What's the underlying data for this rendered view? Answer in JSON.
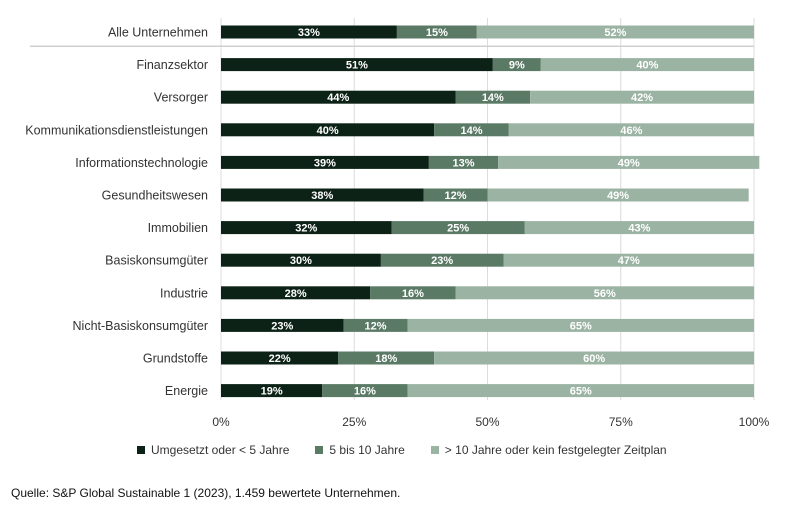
{
  "chart_data": {
    "type": "bar",
    "orientation": "horizontal",
    "stacked": true,
    "categories": [
      "Alle Unternehmen",
      "Finanzsektor",
      "Versorger",
      "Kommunikationsdienstleistungen",
      "Informationstechnologie",
      "Gesundheitswesen",
      "Immobilien",
      "Basiskonsumgüter",
      "Industrie",
      "Nicht-Basiskonsumgüter",
      "Grundstoffe",
      "Energie"
    ],
    "series": [
      {
        "name": "Umgesetzt oder < 5 Jahre",
        "color": "#0d2216",
        "values": [
          33,
          51,
          44,
          40,
          39,
          38,
          32,
          30,
          28,
          23,
          22,
          19
        ],
        "labels": [
          "33%",
          "51%",
          "44%",
          "40%",
          "39%",
          "38%",
          "32%",
          "30%",
          "28%",
          "23%",
          "22%",
          "19%"
        ]
      },
      {
        "name": "5 bis 10 Jahre",
        "color": "#5b7a66",
        "values": [
          15,
          9,
          14,
          14,
          13,
          12,
          25,
          23,
          16,
          12,
          18,
          16
        ],
        "labels": [
          "15%",
          "9%",
          "14%",
          "14%",
          "13%",
          "12%",
          "25%",
          "23%",
          "16%",
          "12%",
          "18%",
          "16%"
        ]
      },
      {
        "name": "> 10 Jahre oder kein festgelegter Zeitplan",
        "color": "#9bb3a3",
        "values": [
          52,
          40,
          42,
          46,
          49,
          49,
          43,
          47,
          56,
          65,
          60,
          65
        ],
        "labels": [
          "52%",
          "40%",
          "42%",
          "46%",
          "49%",
          "49%",
          "43%",
          "47%",
          "56%",
          "65%",
          "60%",
          "65%"
        ]
      }
    ],
    "xlim": [
      0,
      100
    ],
    "xticks": [
      0,
      25,
      50,
      75,
      100
    ],
    "xtick_labels": [
      "0%",
      "25%",
      "50%",
      "75%",
      "100%"
    ],
    "grid": true,
    "legend_position": "bottom",
    "separator_after_first_category": true
  },
  "source_note": "Quelle: S&P Global Sustainable 1 (2023), 1.459 bewertete Unternehmen."
}
